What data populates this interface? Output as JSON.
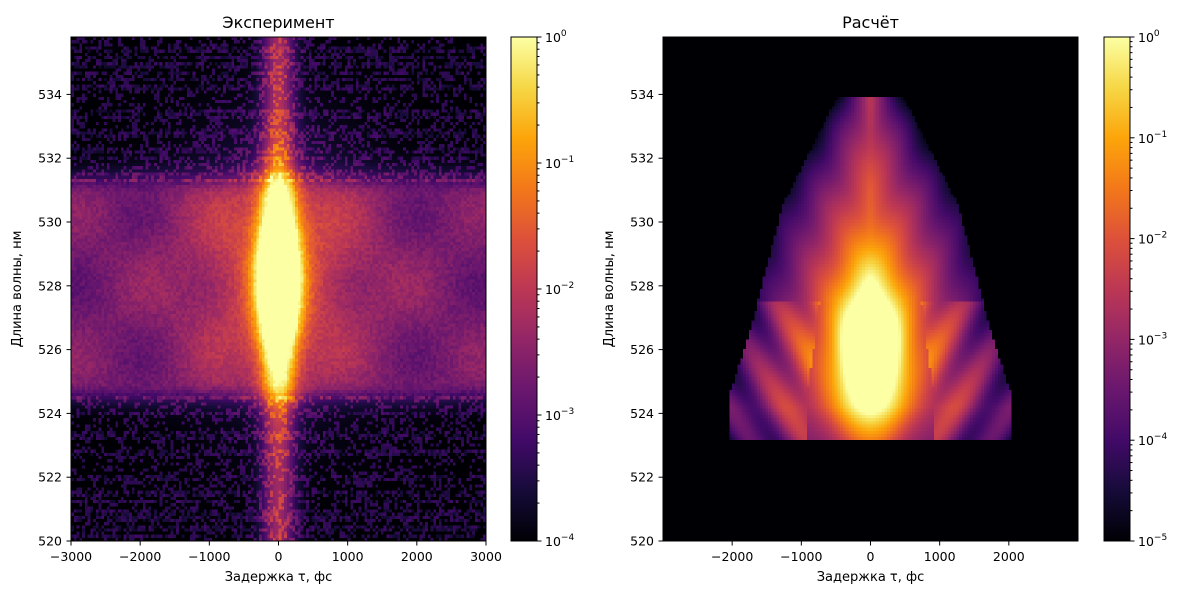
{
  "chart_data": [
    {
      "type": "heatmap",
      "title": "Эксперимент",
      "xlabel": "Задержка τ, фс",
      "ylabel": "Длина волны, нм",
      "xlim": [
        -3000,
        3000
      ],
      "ylim": [
        520,
        535.8
      ],
      "xticks": [
        -3000,
        -2000,
        -1000,
        0,
        1000,
        2000,
        3000
      ],
      "xtick_labels": [
        "−3000",
        "−2000",
        "−1000",
        "0",
        "1000",
        "2000",
        "3000"
      ],
      "yticks": [
        520,
        522,
        524,
        526,
        528,
        530,
        532,
        534
      ],
      "ytick_labels": [
        "520",
        "522",
        "524",
        "526",
        "528",
        "530",
        "532",
        "534"
      ],
      "colormap": "inferno",
      "colorbar": {
        "scale": "log",
        "range": [
          0.0001,
          1
        ],
        "ticks": [
          0.0001,
          0.001,
          0.01,
          0.1,
          1
        ],
        "tick_labels": [
          {
            "base": "10",
            "exp": "−4"
          },
          {
            "base": "10",
            "exp": "−3"
          },
          {
            "base": "10",
            "exp": "−2"
          },
          {
            "base": "10",
            "exp": "−1"
          },
          {
            "base": "10",
            "exp": "0"
          }
        ]
      },
      "features": {
        "peak_tau": 0,
        "peak_wavelength_range": [
          525.5,
          531
        ],
        "side_lobe_wavelength_range": [
          525,
          530.5
        ],
        "noise_below_wavelength": 524.5,
        "noise_above_wavelength": 531.5
      }
    },
    {
      "type": "heatmap",
      "title": "Расчёт",
      "xlabel": "Задержка τ, фс",
      "ylabel": "Длина волны, нм",
      "xlim": [
        -3000,
        3000
      ],
      "ylim": [
        520,
        535.8
      ],
      "xticks": [
        -2000,
        -1000,
        0,
        1000,
        2000
      ],
      "xtick_labels": [
        "−2000",
        "−1000",
        "0",
        "1000",
        "2000"
      ],
      "yticks": [
        520,
        522,
        524,
        526,
        528,
        530,
        532,
        534
      ],
      "ytick_labels": [
        "520",
        "522",
        "524",
        "526",
        "528",
        "530",
        "532",
        "534"
      ],
      "colormap": "inferno",
      "colorbar": {
        "scale": "log",
        "range": [
          1e-05,
          1
        ],
        "ticks": [
          1e-05,
          0.0001,
          0.001,
          0.01,
          0.1,
          1
        ],
        "tick_labels": [
          {
            "base": "10",
            "exp": "−5"
          },
          {
            "base": "10",
            "exp": "−4"
          },
          {
            "base": "10",
            "exp": "−3"
          },
          {
            "base": "10",
            "exp": "−2"
          },
          {
            "base": "10",
            "exp": "−1"
          },
          {
            "base": "10",
            "exp": "0"
          }
        ]
      },
      "features": {
        "peak_tau": 0,
        "peak_wavelength": 526,
        "lower_edge_wavelength": 523.2,
        "upper_edge_wavelength": 534,
        "base_half_width_tau": 2000
      }
    }
  ]
}
